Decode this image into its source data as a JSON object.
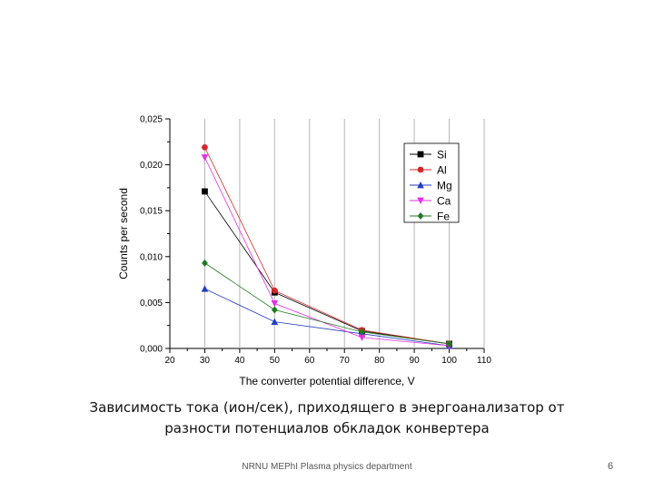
{
  "chart_data": {
    "type": "line",
    "title": "",
    "xlabel": "The converter potential difference, V",
    "ylabel": "Counts per second",
    "xlim": [
      20,
      110
    ],
    "ylim": [
      0,
      0.025
    ],
    "xticks": [
      "20",
      "30",
      "40",
      "50",
      "60",
      "70",
      "80",
      "90",
      "100",
      "110"
    ],
    "yticks": [
      "0,000",
      "0,005",
      "0,010",
      "0,015",
      "0,020",
      "0,025"
    ],
    "grid": "vertical",
    "legend_position": "top-right",
    "x": [
      30,
      50,
      75,
      100
    ],
    "series": [
      {
        "name": "Si",
        "color": "#000000",
        "marker": "square",
        "values": [
          0.0171,
          0.0061,
          0.0019,
          0.0005
        ]
      },
      {
        "name": "Al",
        "color": "#d62728",
        "marker": "circle",
        "values": [
          0.0219,
          0.0063,
          0.002,
          0.0005
        ]
      },
      {
        "name": "Mg",
        "color": "#1f3fbf",
        "marker": "triangle-up",
        "values": [
          0.0065,
          0.0029,
          0.0016,
          0.0003
        ]
      },
      {
        "name": "Ca",
        "color": "#e62ee6",
        "marker": "triangle-down",
        "values": [
          0.0208,
          0.0049,
          0.0012,
          0.0003
        ]
      },
      {
        "name": "Fe",
        "color": "#1f7a1f",
        "marker": "diamond",
        "values": [
          0.0093,
          0.0042,
          0.0018,
          0.0005
        ]
      }
    ]
  },
  "caption": {
    "line1": "Зависимость тока (ион/сек), приходящего в энергоанализатор от",
    "line2": "разности потенциалов обкладок конвертера"
  },
  "footer": {
    "text": "NRNU MEPhI Plasma physics department",
    "page_number": "6"
  }
}
